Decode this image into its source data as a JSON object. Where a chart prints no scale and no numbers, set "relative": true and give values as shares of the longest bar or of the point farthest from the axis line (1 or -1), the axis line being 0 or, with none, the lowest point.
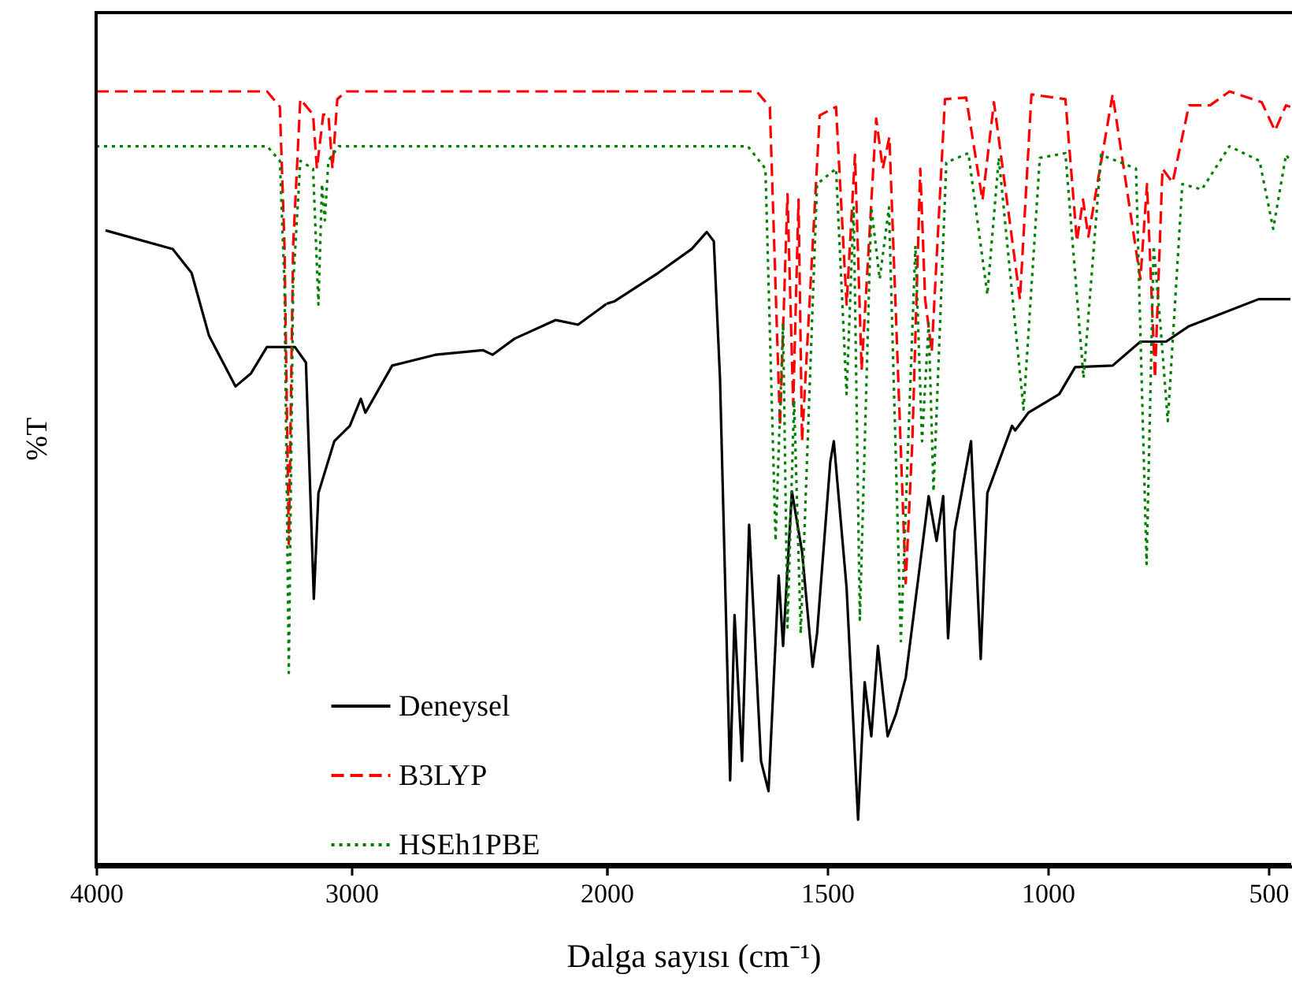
{
  "chart_data": [
    {
      "type": "line",
      "ylabel": "%T",
      "relative": true,
      "xlim": [
        4000,
        2000
      ],
      "xticks": [
        4000,
        3000,
        {
          "value": 2000,
          "label": null
        }
      ],
      "tick_labels": "x",
      "legend": "bottom right",
      "grid": false,
      "marker": "none",
      "series": [
        {
          "name": "Deneysel",
          "color": "#000000",
          "line_style": "solid",
          "x": [
            3963,
            3700,
            3626,
            3558,
            3454,
            3393,
            3331,
            3221,
            3178,
            3147,
            3129,
            3067,
            3006,
            2963,
            2945,
            2840,
            2671,
            2485,
            2447,
            2360,
            2199,
            2112,
            2000
          ],
          "values": [
            0.82,
            0.796,
            0.765,
            0.684,
            0.618,
            0.635,
            0.669,
            0.669,
            0.649,
            0.343,
            0.48,
            0.547,
            0.567,
            0.602,
            0.584,
            0.645,
            0.659,
            0.665,
            0.659,
            0.68,
            0.704,
            0.698,
            0.725
          ]
        },
        {
          "name": "B3LYP",
          "color": "#ff0000",
          "line_style": "dashed",
          "x": [
            4000,
            3330,
            3280,
            3262,
            3245,
            3228,
            3200,
            3150,
            3135,
            3110,
            3090,
            3074,
            3055,
            3020,
            2000
          ],
          "values": [
            1,
            1,
            0.98,
            0.8,
            0.414,
            0.8,
            0.99,
            0.97,
            0.9,
            0.97,
            0.97,
            0.9,
            0.99,
            1,
            1
          ]
        },
        {
          "name": "HSEh1PBE",
          "color": "#008000",
          "line_style": "dotted",
          "x": [
            4000,
            3330,
            3280,
            3262,
            3245,
            3228,
            3200,
            3150,
            3129,
            3115,
            3104,
            3090,
            3050,
            2000
          ],
          "values": [
            0.929,
            0.929,
            0.91,
            0.75,
            0.247,
            0.75,
            0.91,
            0.9,
            0.724,
            0.88,
            0.833,
            0.91,
            0.929,
            0.929
          ]
        }
      ]
    },
    {
      "type": "line",
      "xlabel": "Dalga sayısı (cm⁻¹)",
      "relative": true,
      "xlim": [
        2000,
        450
      ],
      "xticks": [
        2000,
        1500,
        1000,
        500
      ],
      "tick_labels": "x",
      "grid": false,
      "marker": "none",
      "series": [
        {
          "color": "#000000",
          "line_style": "solid",
          "x": [
            2000,
            1983,
            1883,
            1807,
            1773,
            1757,
            1743,
            1720,
            1710,
            1693,
            1677,
            1650,
            1633,
            1610,
            1600,
            1580,
            1557,
            1533,
            1523,
            1493,
            1485,
            1456,
            1430,
            1415,
            1400,
            1385,
            1363,
            1344,
            1322,
            1270,
            1252,
            1237,
            1226,
            1211,
            1174,
            1152,
            1137,
            1081,
            1074,
            1044,
            974,
            938,
            853,
            790,
            732,
            680,
            522,
            450
          ],
          "values": [
            0.725,
            0.728,
            0.765,
            0.796,
            0.818,
            0.806,
            0.629,
            0.108,
            0.322,
            0.133,
            0.439,
            0.133,
            0.094,
            0.373,
            0.282,
            0.482,
            0.404,
            0.255,
            0.298,
            0.52,
            0.547,
            0.357,
            0.057,
            0.235,
            0.165,
            0.282,
            0.165,
            0.194,
            0.241,
            0.476,
            0.418,
            0.476,
            0.292,
            0.431,
            0.547,
            0.265,
            0.48,
            0.567,
            0.561,
            0.584,
            0.608,
            0.643,
            0.645,
            0.676,
            0.676,
            0.696,
            0.731,
            0.731
          ]
        },
        {
          "color": "#ff0000",
          "line_style": "dashed",
          "x": [
            2000,
            1660,
            1630,
            1607,
            1590,
            1577,
            1565,
            1557,
            1517,
            1480,
            1456,
            1437,
            1422,
            1389,
            1374,
            1359,
            1322,
            1307,
            1289,
            1278,
            1263,
            1233,
            1185,
            1148,
            1122,
            1063,
            1037,
            960,
            934,
            920,
            908,
            853,
            790,
            775,
            757,
            740,
            717,
            680,
            632,
            588,
            515,
            485,
            460,
            450
          ],
          "values": [
            1,
            1,
            0.98,
            0.567,
            0.867,
            0.594,
            0.86,
            0.547,
            0.969,
            0.98,
            0.724,
            0.918,
            0.639,
            0.965,
            0.9,
            0.941,
            0.363,
            0.547,
            0.9,
            0.731,
            0.663,
            0.99,
            0.992,
            0.859,
            0.986,
            0.731,
            0.996,
            0.99,
            0.806,
            0.86,
            0.812,
            0.996,
            0.757,
            0.88,
            0.629,
            0.9,
            0.882,
            0.982,
            0.982,
            1,
            0.986,
            0.949,
            0.982,
            0.98
          ]
        },
        {
          "color": "#008000",
          "line_style": "dotted",
          "x": [
            2000,
            1680,
            1640,
            1617,
            1600,
            1590,
            1575,
            1560,
            1523,
            1480,
            1456,
            1440,
            1426,
            1400,
            1381,
            1360,
            1333,
            1300,
            1285,
            1270,
            1259,
            1230,
            1180,
            1137,
            1111,
            1055,
            1018,
            960,
            919,
            879,
            800,
            776,
            760,
            745,
            728,
            695,
            651,
            588,
            520,
            489,
            460,
            450
          ],
          "values": [
            0.929,
            0.929,
            0.9,
            0.418,
            0.7,
            0.306,
            0.6,
            0.298,
            0.88,
            0.9,
            0.608,
            0.85,
            0.316,
            0.85,
            0.757,
            0.85,
            0.288,
            0.8,
            0.547,
            0.7,
            0.482,
            0.908,
            0.92,
            0.737,
            0.914,
            0.588,
            0.914,
            0.92,
            0.629,
            0.918,
            0.9,
            0.388,
            0.8,
            0.7,
            0.573,
            0.88,
            0.873,
            0.929,
            0.91,
            0.822,
            0.918,
            0.91
          ]
        }
      ]
    }
  ]
}
